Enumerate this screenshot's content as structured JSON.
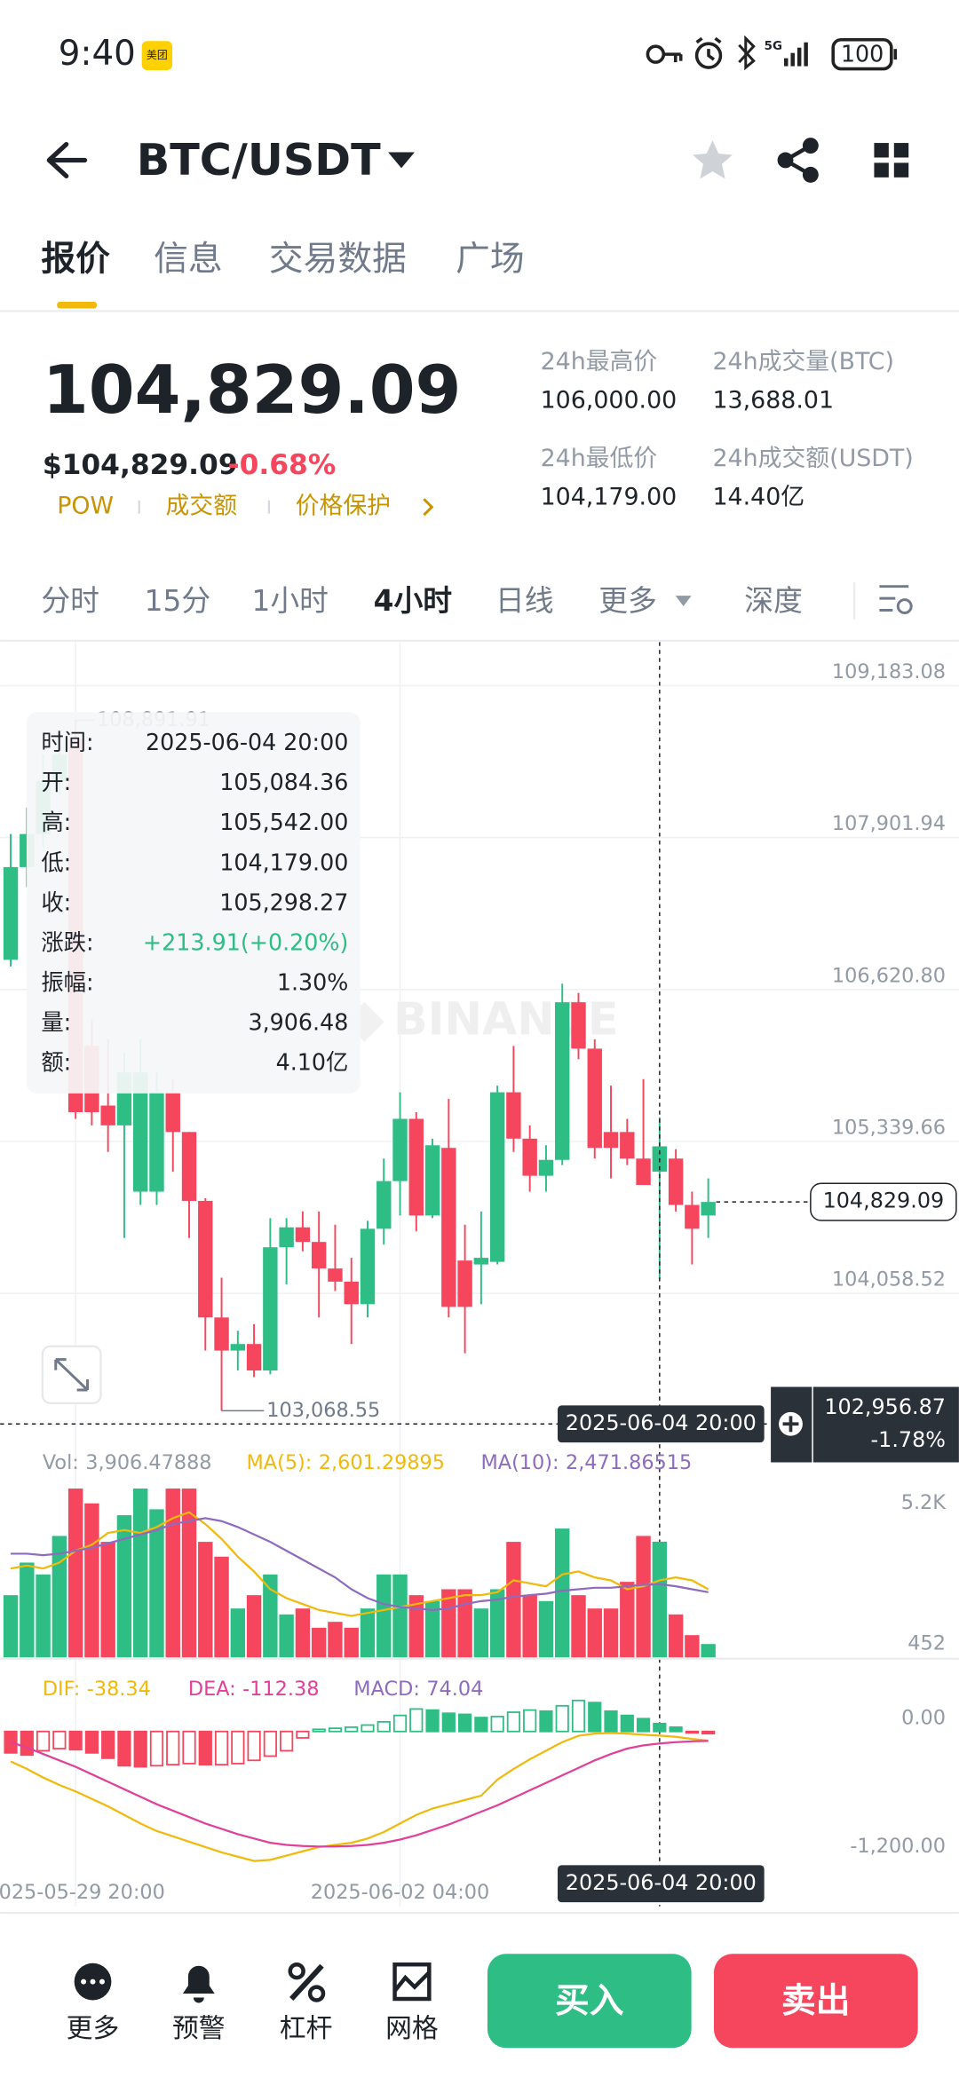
{
  "status_bar": {
    "time": "9:40",
    "badge": "美团",
    "network": "5G",
    "battery": "100"
  },
  "header": {
    "pair": "BTC/USDT"
  },
  "tabs": {
    "items": [
      "报价",
      "信息",
      "交易数据",
      "广场"
    ],
    "active": 0
  },
  "quote": {
    "last": "104,829.09",
    "usd": "$104,829.09",
    "change": "-0.68%",
    "tags": [
      "POW",
      "成交额",
      "价格保护"
    ]
  },
  "stats": [
    {
      "label": "24h最高价",
      "value": "106,000.00"
    },
    {
      "label": "24h成交量(BTC)",
      "value": "13,688.01"
    },
    {
      "label": "24h最低价",
      "value": "104,179.00"
    },
    {
      "label": "24h成交额(USDT)",
      "value": "14.40亿"
    }
  ],
  "intervals": {
    "items": [
      "分时",
      "15分",
      "1小时",
      "4小时",
      "日线",
      "更多",
      "深度"
    ],
    "active": 3
  },
  "watermark": "BINANCE",
  "chart_data": [
    {
      "type": "candlestick",
      "categories": [
        null,
        null,
        null,
        null,
        "2025-05-29 20:00",
        null,
        null,
        null,
        null,
        null,
        null,
        null,
        null,
        null,
        null,
        null,
        null,
        null,
        null,
        null,
        null,
        null,
        null,
        null,
        "2025-06-02 04:00",
        null,
        null,
        null,
        null,
        null,
        null,
        null,
        null,
        null,
        null,
        null,
        null,
        null,
        null,
        null,
        "2025-06-04 20:00",
        null,
        null,
        null
      ],
      "open": [
        106871,
        107653,
        107932,
        108379,
        108736,
        106145,
        105642,
        105475,
        104916,
        104916,
        105754,
        105419,
        104838,
        103855,
        103576,
        103631,
        103408,
        104447,
        104615,
        104492,
        104268,
        104157,
        103967,
        104603,
        105005,
        105530,
        104715,
        105285,
        104335,
        104302,
        104324,
        105754,
        105363,
        105050,
        105184,
        106513,
        106122,
        105419,
        105419,
        105195,
        105084.36,
        105195,
        104804,
        104715
      ],
      "high": [
        107932,
        108155,
        108602,
        108770,
        108891.91,
        106368,
        106201,
        106089,
        106201,
        105921,
        105865,
        105419,
        104860,
        104190,
        103743,
        103799,
        104693,
        104693,
        104749,
        104749,
        104637,
        104358,
        104670,
        105195,
        105754,
        105586,
        105363,
        105698,
        104637,
        104749,
        105810,
        106145,
        105475,
        105307,
        106670,
        106592,
        106201,
        105810,
        105530,
        105865,
        105542,
        105274,
        104916,
        105028
      ],
      "low": [
        106815,
        107485,
        107820,
        108267,
        105530,
        105475,
        105251,
        104525,
        104804,
        104804,
        105084,
        104525,
        103576,
        103068.55,
        103408,
        103352,
        103375,
        104134,
        104413,
        103855,
        104078,
        103631,
        103855,
        104469,
        104715,
        104581,
        104693,
        103855,
        103553,
        103967,
        104302,
        105251,
        104916,
        104916,
        105140,
        106033,
        105195,
        105028,
        105140,
        104972,
        104179,
        104749,
        104302,
        104525
      ],
      "close": [
        107653,
        107932,
        108379,
        108602,
        105586,
        105586,
        105475,
        105921,
        105921,
        105754,
        105419,
        104838,
        103855,
        103576,
        103631,
        103408,
        104447,
        104615,
        104492,
        104268,
        104157,
        103967,
        104603,
        105005,
        105530,
        104715,
        105307,
        103944,
        103944,
        104358,
        105754,
        105363,
        105050,
        105184,
        106513,
        106122,
        105285,
        105285,
        105195,
        104972,
        105298.27,
        104804,
        104603,
        104829.09
      ],
      "up_color": "#2ebd85",
      "down_color": "#f6465d",
      "ylim": [
        102797,
        109551
      ],
      "yticks": [
        {
          "value": 109183.08,
          "label": "109,183.08"
        },
        {
          "value": 107901.94,
          "label": "107,901.94"
        },
        {
          "value": 106620.8,
          "label": "106,620.80"
        },
        {
          "value": 105339.66,
          "label": "105,339.66"
        },
        {
          "value": 104058.52,
          "label": "104,058.52"
        }
      ],
      "grid": true,
      "high_label": {
        "value": 108891.91,
        "label": "108,891.91"
      },
      "low_label": {
        "value": 103068.55,
        "label": "103,068.55"
      },
      "last_price": {
        "value": 104829.09,
        "label": "104,829.09"
      },
      "crosshair": {
        "time": "2025-06-04 20:00",
        "value": 102956.87,
        "label": "102,956.87",
        "change": "-1.78%"
      },
      "tooltip": [
        {
          "label": "时间:",
          "value": "2025-06-04 20:00"
        },
        {
          "label": "开:",
          "value": "105,084.36"
        },
        {
          "label": "高:",
          "value": "105,542.00"
        },
        {
          "label": "低:",
          "value": "104,179.00"
        },
        {
          "label": "收:",
          "value": "105,298.27"
        },
        {
          "label": "涨跌:",
          "value": "+213.91(+0.20%)",
          "color": "#2ebd85"
        },
        {
          "label": "振幅:",
          "value": "1.30%"
        },
        {
          "label": "量:",
          "value": "3,906.48"
        },
        {
          "label": "额:",
          "value": "4.10亿"
        }
      ]
    },
    {
      "type": "bar",
      "series": [
        {
          "name": "Vol:",
          "value_label": "3,906.47888",
          "values": [
            2100,
            3200,
            2800,
            4100,
            5700,
            5200,
            3900,
            4800,
            5700,
            5000,
            5700,
            5700,
            3900,
            3400,
            1650,
            2100,
            2800,
            1450,
            1650,
            1000,
            1200,
            1000,
            1650,
            2800,
            2800,
            2100,
            1900,
            2300,
            2300,
            1650,
            2300,
            3900,
            2100,
            1900,
            4350,
            2100,
            1650,
            1650,
            2550,
            4100,
            3906.47888,
            1450,
            750,
            450
          ]
        },
        {
          "name": "MA(5):",
          "value_label": "2,601.29895",
          "color": "#f0b90b",
          "values": [
            3000,
            3100,
            3000,
            3200,
            3600,
            3800,
            4200,
            4300,
            4200,
            4400,
            4700,
            4900,
            4500,
            4000,
            3400,
            2900,
            2300,
            2000,
            1800,
            1600,
            1500,
            1400,
            1500,
            1600,
            1700,
            1800,
            1900,
            2000,
            2100,
            2100,
            2200,
            2600,
            2500,
            2400,
            2800,
            2900,
            2700,
            2600,
            2300,
            2400,
            2601.29895,
            2700,
            2600,
            2300
          ]
        },
        {
          "name": "MA(10):",
          "value_label": "2,471.86515",
          "color": "#8e6bbf",
          "values": [
            3500,
            3500,
            3450,
            3500,
            3600,
            3700,
            3850,
            4000,
            4150,
            4300,
            4500,
            4600,
            4700,
            4600,
            4400,
            4150,
            3900,
            3600,
            3300,
            3000,
            2700,
            2300,
            2000,
            1800,
            1700,
            1650,
            1600,
            1650,
            1800,
            1900,
            1950,
            2050,
            2100,
            2150,
            2250,
            2300,
            2350,
            2350,
            2400,
            2450,
            2471.86515,
            2400,
            2300,
            2200
          ]
        }
      ],
      "ylim": [
        0,
        5900
      ],
      "yticks": [
        {
          "value": 5200,
          "label": "5.2K"
        },
        452
      ]
    },
    {
      "type": "macd",
      "series": [
        {
          "name": "DIF:",
          "value_label": "-38.34",
          "color": "#f0b90b",
          "values": [
            -280,
            -350,
            -430,
            -500,
            -560,
            -630,
            -700,
            -780,
            -860,
            -930,
            -980,
            -1030,
            -1080,
            -1130,
            -1170,
            -1210,
            -1200,
            -1160,
            -1120,
            -1080,
            -1060,
            -1040,
            -1000,
            -940,
            -860,
            -780,
            -720,
            -680,
            -640,
            -600,
            -450,
            -350,
            -260,
            -180,
            -100,
            -40,
            -20,
            -15,
            -20,
            -30,
            -38.34,
            -50,
            -70,
            -85
          ]
        },
        {
          "name": "DEA:",
          "value_label": "-112.38",
          "color": "#e0409a",
          "values": [
            -100,
            -150,
            -210,
            -270,
            -330,
            -400,
            -470,
            -540,
            -610,
            -680,
            -740,
            -800,
            -860,
            -910,
            -960,
            -1000,
            -1040,
            -1060,
            -1070,
            -1075,
            -1075,
            -1070,
            -1060,
            -1040,
            -1010,
            -970,
            -920,
            -870,
            -810,
            -750,
            -690,
            -620,
            -550,
            -480,
            -410,
            -340,
            -270,
            -210,
            -160,
            -130,
            -112.38,
            -100,
            -92,
            -88
          ]
        },
        {
          "name": "MACD:",
          "value_label": "74.04",
          "color": "#8e6bbf",
          "values": [
            -200,
            -220,
            -180,
            -160,
            -170,
            -200,
            -250,
            -320,
            -330,
            -320,
            -310,
            -300,
            -310,
            -310,
            -300,
            -270,
            -230,
            -180,
            -60,
            20,
            30,
            40,
            60,
            90,
            150,
            210,
            200,
            170,
            160,
            130,
            140,
            180,
            200,
            190,
            240,
            290,
            270,
            190,
            150,
            120,
            74.04,
            40,
            -10,
            -20
          ]
        }
      ],
      "ylim": [
        -1324,
        569
      ],
      "yticks": [
        {
          "value": 0,
          "label": "0.00"
        },
        {
          "value": -1200,
          "label": "-1,200.00"
        }
      ]
    }
  ],
  "bottom_bar": {
    "actions": [
      "更多",
      "预警",
      "杠杆",
      "网格"
    ],
    "buy": "买入",
    "sell": "卖出"
  }
}
